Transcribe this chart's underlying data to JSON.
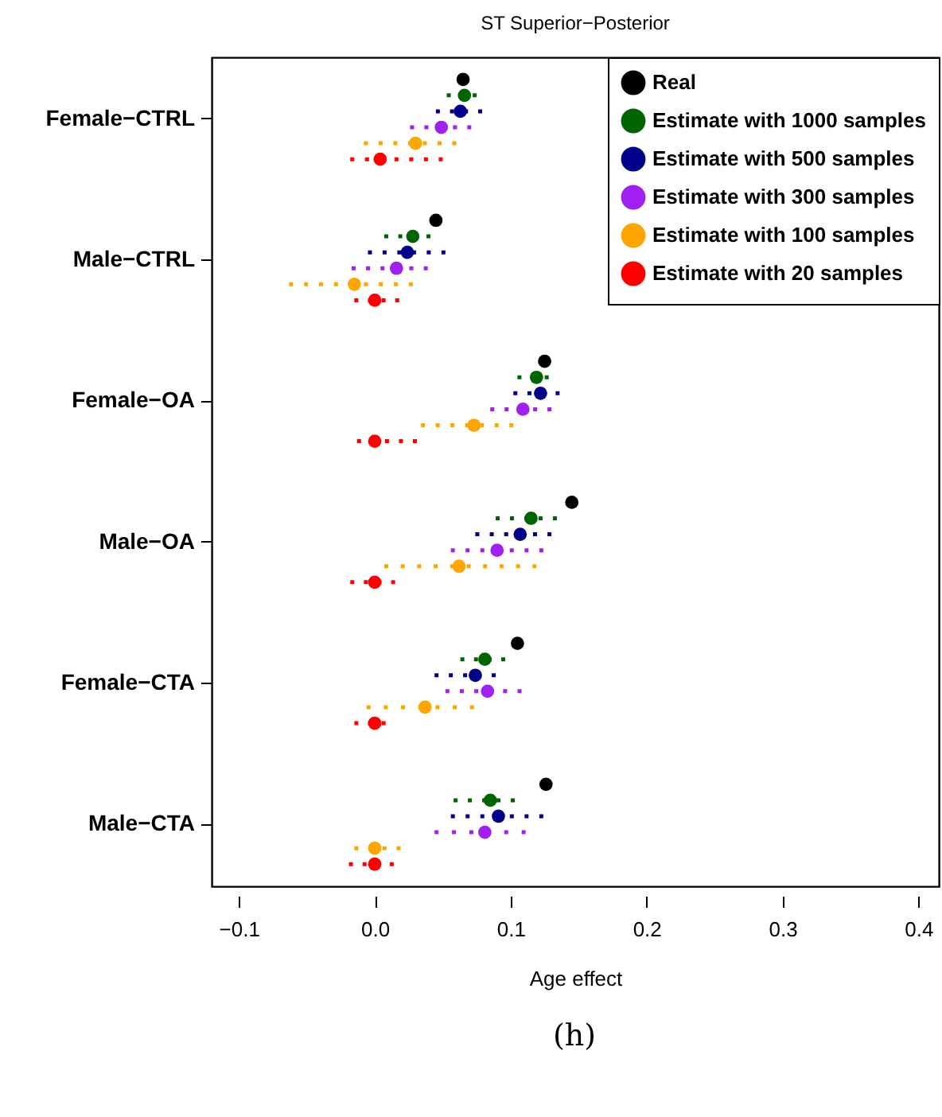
{
  "chart_data": {
    "type": "scatter",
    "orientation": "horizontal",
    "title": "ST Superior−Posterior",
    "xlabel": "Age effect",
    "annotations": [
      "(h)"
    ],
    "categories": [
      "Female−CTRL",
      "Male−CTRL",
      "Female−OA",
      "Male−OA",
      "Female−CTA",
      "Male−CTA"
    ],
    "xlim": [
      -0.12,
      0.415
    ],
    "xticks": [
      -0.1,
      {
        "value": 0,
        "label": "0.0"
      },
      0.1,
      0.2,
      0.3,
      0.4
    ],
    "grid": false,
    "legend": "top right",
    "marker": "circle",
    "line_style": "dotted",
    "series": [
      {
        "name": "Real",
        "color": "#000000",
        "values": [
          0.065,
          0.045,
          0.125,
          0.145,
          0.105,
          0.126
        ]
      },
      {
        "name": "Estimate with 1000 samples",
        "color": "#006400",
        "values": [
          0.066,
          0.028,
          0.119,
          0.115,
          0.081,
          0.085
        ],
        "errors": [
          [
            0.053,
            0.075
          ],
          [
            0.007,
            0.041
          ],
          [
            0.105,
            0.128
          ],
          [
            0.089,
            0.134
          ],
          [
            0.063,
            0.096
          ],
          [
            0.058,
            0.103
          ]
        ]
      },
      {
        "name": "Estimate with 500 samples",
        "color": "#00008b",
        "values": [
          0.063,
          0.024,
          0.122,
          0.107,
          0.074,
          0.091
        ],
        "errors": [
          [
            0.045,
            0.079
          ],
          [
            -0.005,
            0.052
          ],
          [
            0.102,
            0.136
          ],
          [
            0.074,
            0.13
          ],
          [
            0.044,
            0.089
          ],
          [
            0.056,
            0.124
          ]
        ]
      },
      {
        "name": "Estimate with 300 samples",
        "color": "#a020f0",
        "values": [
          0.049,
          0.016,
          0.109,
          0.09,
          0.083,
          0.081
        ],
        "errors": [
          [
            0.026,
            0.071
          ],
          [
            -0.017,
            0.039
          ],
          [
            0.085,
            0.13
          ],
          [
            0.056,
            0.124
          ],
          [
            0.052,
            0.108
          ],
          [
            0.044,
            0.111
          ]
        ]
      },
      {
        "name": "Estimate with 100 samples",
        "color": "#ffa500",
        "values": [
          0.03,
          -0.015,
          0.073,
          0.062,
          0.037,
          0
        ],
        "errors": [
          [
            -0.008,
            0.06
          ],
          [
            -0.063,
            0.028
          ],
          [
            0.034,
            0.102
          ],
          [
            0.007,
            0.119
          ],
          [
            -0.006,
            0.073
          ],
          [
            -0.015,
            0.019
          ]
        ]
      },
      {
        "name": "Estimate with 20 samples",
        "color": "#ff0000",
        "values": [
          0.004,
          0,
          0,
          0,
          0,
          0
        ],
        "errors": [
          [
            -0.018,
            0.05
          ],
          [
            -0.015,
            0.018
          ],
          [
            -0.013,
            0.031
          ],
          [
            -0.018,
            0.015
          ],
          [
            -0.015,
            0.008
          ],
          [
            -0.019,
            0.014
          ]
        ]
      }
    ]
  }
}
